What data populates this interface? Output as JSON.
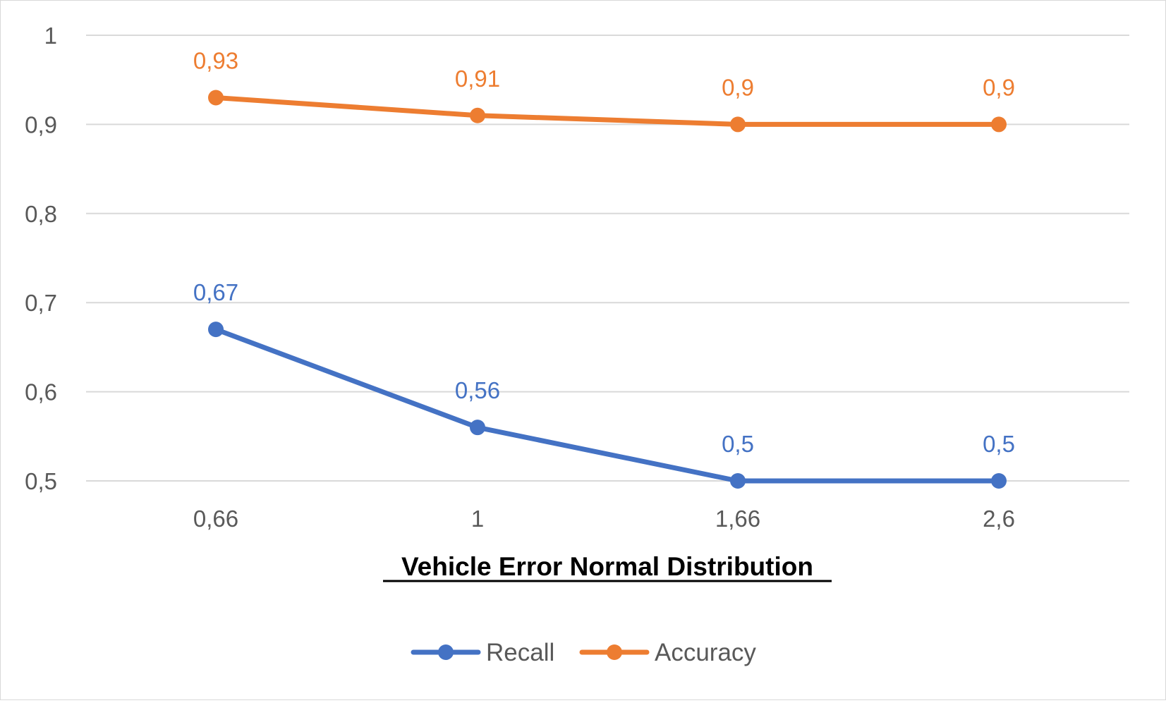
{
  "chart_data": {
    "type": "line",
    "title": "",
    "xlabel": "Vehicle Error Normal Distribution",
    "ylabel": "",
    "categories": [
      "0,66",
      "1",
      "1,66",
      "2,6"
    ],
    "ylim": [
      0.5,
      1
    ],
    "yticks": [
      0.5,
      0.6,
      0.7,
      0.8,
      0.9,
      1
    ],
    "ytick_labels": [
      "0,5",
      "0,6",
      "0,7",
      "0,8",
      "0,9",
      "1"
    ],
    "grid": true,
    "legend_position": "bottom",
    "series": [
      {
        "name": "Recall",
        "color": "#4472C4",
        "values": [
          0.67,
          0.56,
          0.5,
          0.5
        ],
        "labels": [
          "0,67",
          "0,56",
          "0,5",
          "0,5"
        ]
      },
      {
        "name": "Accuracy",
        "color": "#ED7D31",
        "values": [
          0.93,
          0.91,
          0.9,
          0.9
        ],
        "labels": [
          "0,93",
          "0,91",
          "0,9",
          "0,9"
        ]
      }
    ]
  }
}
